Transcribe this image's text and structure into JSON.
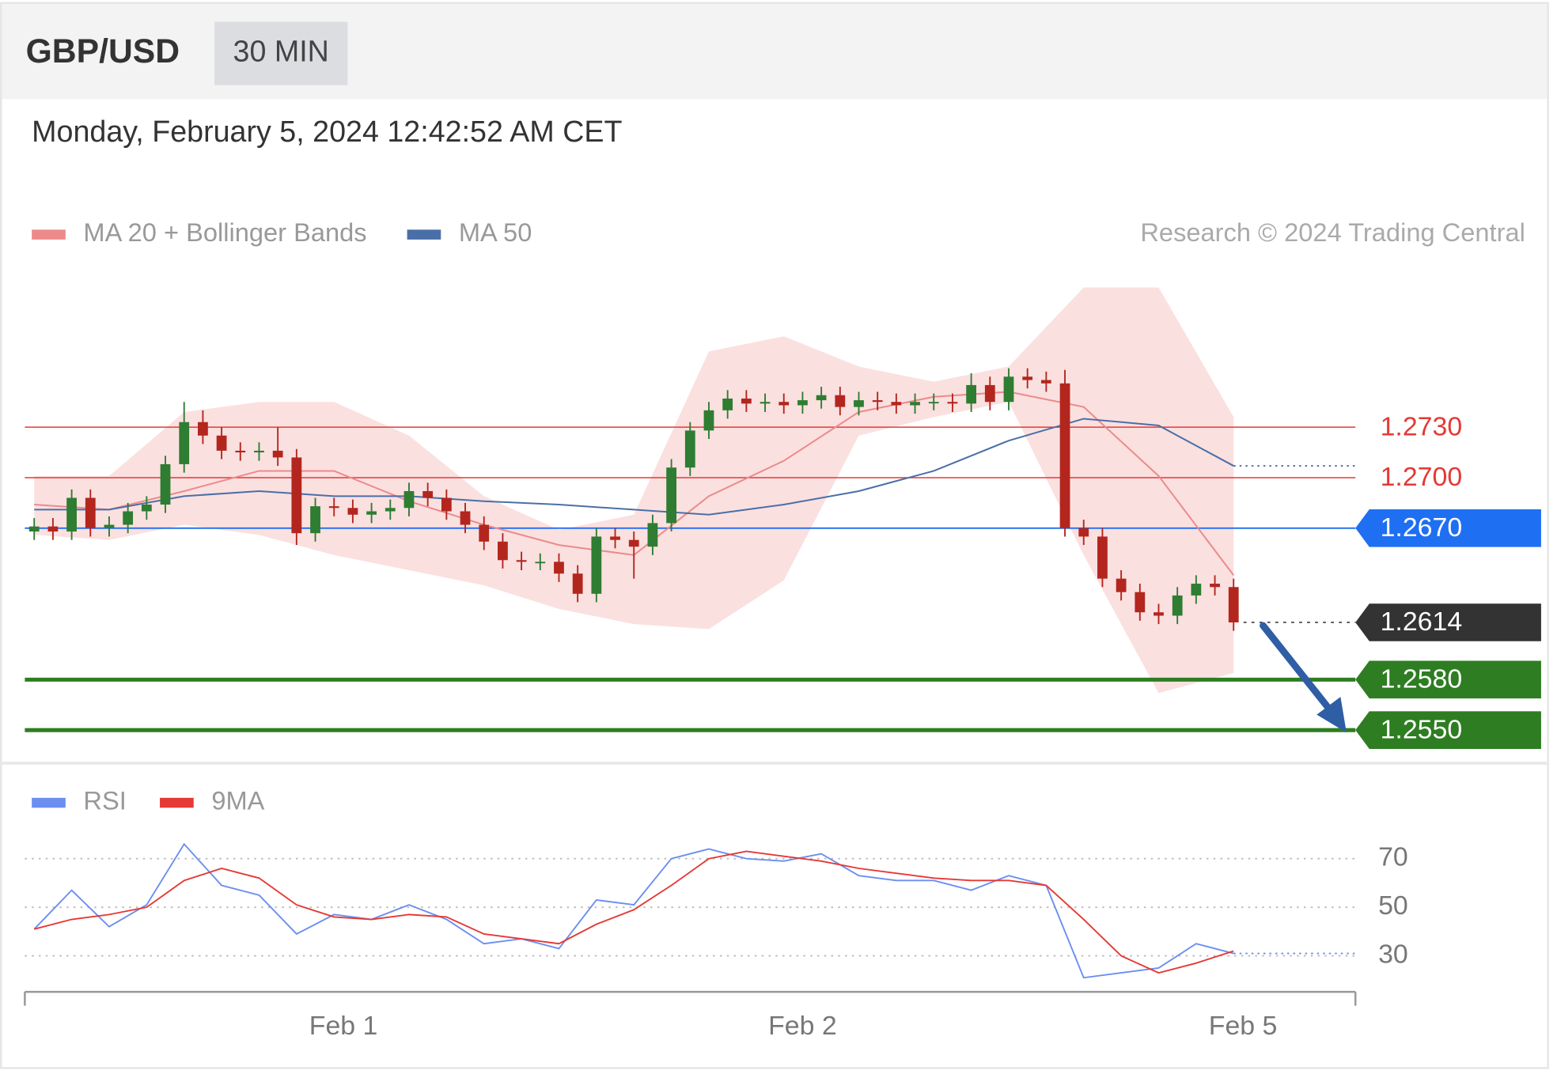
{
  "chart_data": {
    "type": "candlestick",
    "title": "GBP/USD",
    "timeframe": "30 MIN",
    "subtitle": "Monday, February 5, 2024 12:42:52 AM CET",
    "source": "Research © 2024 Trading Central",
    "xlim": [
      -0.5,
      70.5
    ],
    "xticks": [
      {
        "value": 16.5,
        "label": "Feb 1"
      },
      {
        "value": 41,
        "label": "Feb 2"
      },
      {
        "value": 64.5,
        "label": "Feb 5"
      }
    ],
    "ylim": [
      1.2538,
      1.2825
    ],
    "up_color": "#2e7d32",
    "down_color": "#b3261e",
    "open": [
      1.2668,
      1.2671,
      1.2668,
      1.2688,
      1.267,
      1.2672,
      1.268,
      1.2684,
      1.2708,
      1.2733,
      1.2725,
      1.2716,
      1.2715,
      1.2716,
      1.2712,
      1.2667,
      1.2683,
      1.2682,
      1.2678,
      1.268,
      1.2682,
      1.2692,
      1.2688,
      1.268,
      1.2672,
      1.2662,
      1.2651,
      1.265,
      1.265,
      1.2643,
      1.2631,
      1.2665,
      1.2663,
      1.2659,
      1.2673,
      1.2706,
      1.2728,
      1.274,
      1.2747,
      1.2744,
      1.2745,
      1.2743,
      1.2746,
      1.2749,
      1.2742,
      1.2746,
      1.2745,
      1.2743,
      1.2745,
      1.2745,
      1.2744,
      1.2755,
      1.2745,
      1.276,
      1.2758,
      1.2756,
      1.267,
      1.2665,
      1.264,
      1.2632,
      1.262,
      1.2618,
      1.263,
      1.2637,
      1.2635
    ],
    "high": [
      1.2676,
      1.2676,
      1.2693,
      1.2693,
      1.2677,
      1.2685,
      1.2689,
      1.2713,
      1.2745,
      1.274,
      1.273,
      1.2721,
      1.2721,
      1.273,
      1.2717,
      1.2688,
      1.2688,
      1.2687,
      1.2685,
      1.2687,
      1.2697,
      1.2697,
      1.2693,
      1.2685,
      1.2677,
      1.2667,
      1.2656,
      1.2655,
      1.2655,
      1.2648,
      1.267,
      1.267,
      1.2668,
      1.2678,
      1.2711,
      1.2733,
      1.2745,
      1.2752,
      1.2752,
      1.275,
      1.275,
      1.2751,
      1.2754,
      1.2754,
      1.2751,
      1.2751,
      1.275,
      1.275,
      1.275,
      1.275,
      1.2762,
      1.276,
      1.2765,
      1.2765,
      1.2763,
      1.2764,
      1.2675,
      1.267,
      1.2645,
      1.2637,
      1.2625,
      1.2635,
      1.2642,
      1.2642,
      1.264
    ],
    "low": [
      1.2663,
      1.2663,
      1.2663,
      1.2665,
      1.2665,
      1.2667,
      1.2675,
      1.2679,
      1.2703,
      1.272,
      1.2711,
      1.271,
      1.271,
      1.2707,
      1.266,
      1.2662,
      1.2677,
      1.2673,
      1.2673,
      1.2675,
      1.2677,
      1.2683,
      1.2675,
      1.2667,
      1.2657,
      1.2646,
      1.2645,
      1.2645,
      1.2638,
      1.2626,
      1.2626,
      1.2658,
      1.264,
      1.2654,
      1.2668,
      1.2701,
      1.2723,
      1.2735,
      1.2739,
      1.2739,
      1.2738,
      1.2738,
      1.2741,
      1.2737,
      1.2737,
      1.274,
      1.2738,
      1.2738,
      1.274,
      1.2739,
      1.2739,
      1.274,
      1.274,
      1.2753,
      1.2751,
      1.2665,
      1.266,
      1.2635,
      1.2627,
      1.2615,
      1.2613,
      1.2613,
      1.2625,
      1.263,
      1.2609
    ],
    "close": [
      1.2671,
      1.2668,
      1.2688,
      1.267,
      1.2672,
      1.268,
      1.2684,
      1.2708,
      1.2733,
      1.2725,
      1.2716,
      1.2715,
      1.2716,
      1.2712,
      1.2667,
      1.2683,
      1.2682,
      1.2678,
      1.268,
      1.2682,
      1.2692,
      1.2688,
      1.268,
      1.2672,
      1.2662,
      1.2651,
      1.265,
      1.265,
      1.2643,
      1.2631,
      1.2665,
      1.2663,
      1.2659,
      1.2673,
      1.2706,
      1.2728,
      1.274,
      1.2747,
      1.2744,
      1.2745,
      1.2743,
      1.2746,
      1.2749,
      1.2742,
      1.2746,
      1.2745,
      1.2743,
      1.2745,
      1.2745,
      1.2744,
      1.2755,
      1.2745,
      1.276,
      1.2758,
      1.2756,
      1.267,
      1.2665,
      1.264,
      1.2632,
      1.262,
      1.2618,
      1.263,
      1.2637,
      1.2635,
      1.2614
    ],
    "bands": {
      "name": "MA 20 + Bollinger Bands",
      "color": "#ec8a8a",
      "fill": "#fbe0e0",
      "x": [
        0,
        4,
        8,
        12,
        16,
        20,
        24,
        28,
        32,
        36,
        40,
        44,
        48,
        52,
        56,
        60,
        64
      ],
      "middle": [
        1.2684,
        1.2681,
        1.2692,
        1.2704,
        1.2704,
        1.2686,
        1.2672,
        1.266,
        1.2654,
        1.2689,
        1.271,
        1.2739,
        1.2748,
        1.2751,
        1.2742,
        1.2701,
        1.2642
      ],
      "upper": [
        1.2701,
        1.2701,
        1.2739,
        1.2745,
        1.2745,
        1.2725,
        1.2689,
        1.2669,
        1.2678,
        1.2775,
        1.2784,
        1.2766,
        1.2757,
        1.2766,
        1.2813,
        1.2813,
        1.2736
      ],
      "lower": [
        1.2666,
        1.2663,
        1.2672,
        1.2666,
        1.2654,
        1.2645,
        1.2636,
        1.2622,
        1.2613,
        1.261,
        1.2639,
        1.2725,
        1.2736,
        1.2745,
        1.2654,
        1.2572,
        1.2584
      ]
    },
    "ma50": {
      "name": "MA 50",
      "color": "#4a6fa8",
      "x": [
        0,
        4,
        8,
        12,
        16,
        20,
        24,
        28,
        32,
        36,
        40,
        44,
        48,
        52,
        56,
        60,
        64
      ],
      "values": [
        1.2681,
        1.2681,
        1.2689,
        1.2692,
        1.2689,
        1.2689,
        1.2686,
        1.2684,
        1.2681,
        1.2678,
        1.2684,
        1.2692,
        1.2704,
        1.2722,
        1.2735,
        1.2731,
        1.2707
      ]
    },
    "levels": [
      {
        "value": 1.273,
        "label": "1.2730",
        "color": "#e53935",
        "style": "text",
        "line_width": 1.2
      },
      {
        "value": 1.27,
        "label": "1.2700",
        "color": "#e53935",
        "style": "text",
        "line_width": 1.2
      },
      {
        "value": 1.267,
        "label": "1.2670",
        "color": "#1f6ff2",
        "style": "box",
        "line_width": 1.5
      },
      {
        "value": 1.2614,
        "label": "1.2614",
        "color": "#333333",
        "style": "box",
        "line": "dotted",
        "line_width": 1.5
      },
      {
        "value": 1.258,
        "label": "1.2580",
        "color": "#2e7d22",
        "style": "box",
        "line_width": 4
      },
      {
        "value": 1.255,
        "label": "1.2550",
        "color": "#2e7d22",
        "style": "box",
        "line_width": 4
      }
    ],
    "rsi": {
      "ylim": [
        16,
        82
      ],
      "yticks": [
        30,
        50,
        70
      ],
      "x": [
        0,
        2,
        4,
        6,
        8,
        10,
        12,
        14,
        16,
        18,
        20,
        22,
        24,
        26,
        28,
        30,
        32,
        34,
        36,
        38,
        40,
        42,
        44,
        46,
        48,
        50,
        52,
        54,
        56,
        58,
        60,
        62,
        64
      ],
      "series": [
        {
          "name": "RSI",
          "color": "#6b8ef0",
          "values": [
            41,
            57,
            42,
            51,
            76,
            59,
            55,
            39,
            47,
            45,
            51,
            45,
            35,
            37,
            33,
            53,
            51,
            70,
            74,
            70,
            69,
            72,
            63,
            61,
            61,
            57,
            63,
            59,
            21,
            23,
            25,
            35,
            31
          ]
        },
        {
          "name": "9MA",
          "color": "#e53935",
          "values": [
            41,
            45,
            47,
            50,
            61,
            66,
            62,
            51,
            46,
            45,
            47,
            46,
            39,
            37,
            35,
            43,
            49,
            59,
            70,
            73,
            71,
            69,
            66,
            64,
            62,
            61,
            61,
            59,
            45,
            30,
            23,
            27,
            32
          ]
        }
      ]
    }
  }
}
